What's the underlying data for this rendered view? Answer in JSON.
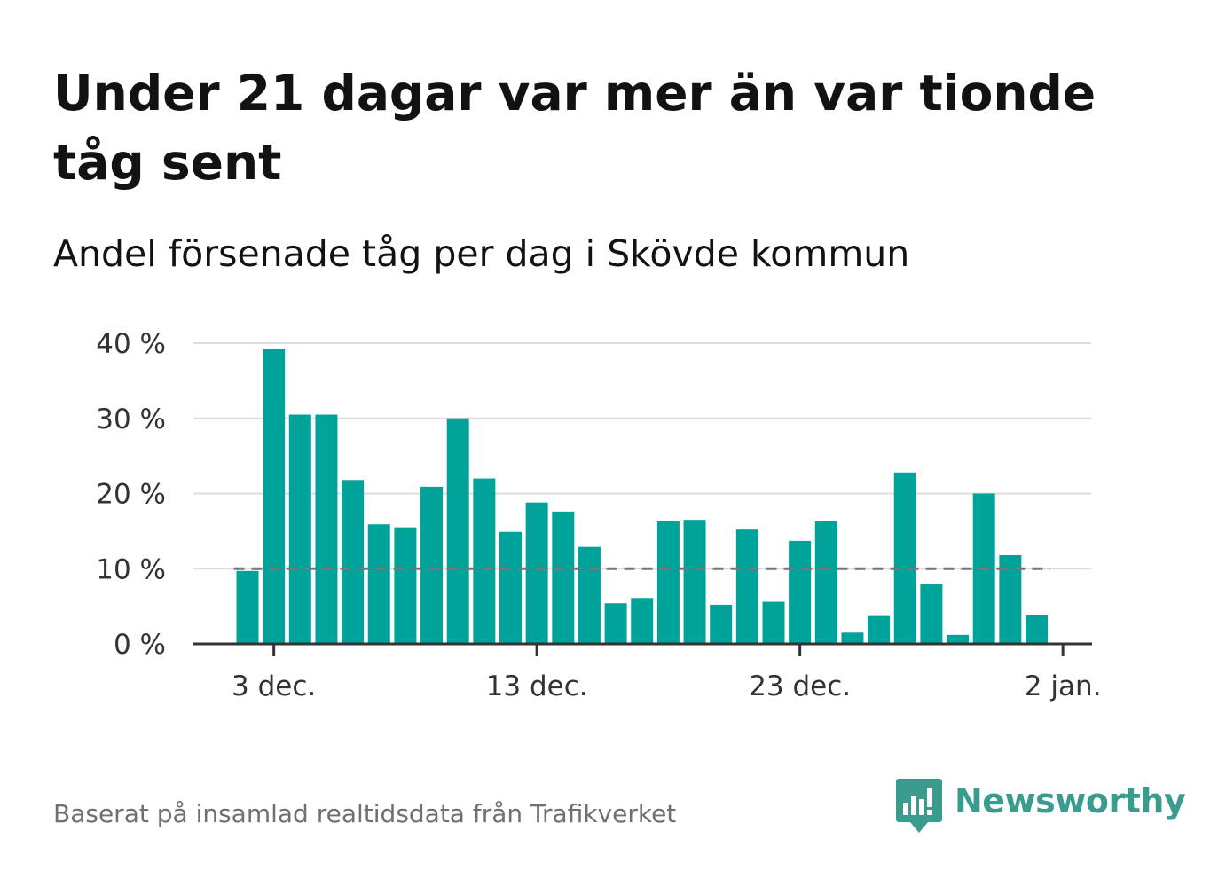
{
  "header": {
    "title": "Under 21 dagar var mer än var tionde tåg sent",
    "subtitle": "Andel försenade tåg per dag i Skövde kommun"
  },
  "footer": {
    "source": "Baserat på insamlad realtidsdata från Trafikverket",
    "brand": "Newsworthy"
  },
  "colors": {
    "bar": "#00a39a",
    "reference_line": "#777777",
    "grid": "#dddddd",
    "axis": "#333333",
    "brand": "#3a9b8f"
  },
  "icons": {
    "brand_logo": "newsworthy-logo-icon"
  },
  "chart_data": {
    "type": "bar",
    "x_start": "2023-12-02",
    "x_labels": [
      "3 dec.",
      "13 dec.",
      "23 dec.",
      "2 jan."
    ],
    "y_labels": [
      "0 %",
      "10 %",
      "20 %",
      "30 %",
      "40 %"
    ],
    "x_tick_days": [
      1,
      11,
      21,
      31
    ],
    "y_ticks": [
      0,
      10,
      20,
      30,
      40
    ],
    "ylim": [
      0,
      40
    ],
    "values": [
      9.7,
      39.3,
      30.5,
      30.5,
      21.8,
      15.9,
      15.5,
      20.9,
      30.0,
      22.0,
      14.9,
      18.8,
      17.6,
      12.9,
      5.4,
      6.1,
      16.3,
      16.5,
      5.2,
      15.2,
      5.6,
      13.7,
      16.3,
      1.5,
      3.7,
      22.8,
      7.9,
      1.2,
      20.0,
      11.8,
      3.8
    ],
    "reference_line": 10,
    "grid": true,
    "legend": "none"
  }
}
